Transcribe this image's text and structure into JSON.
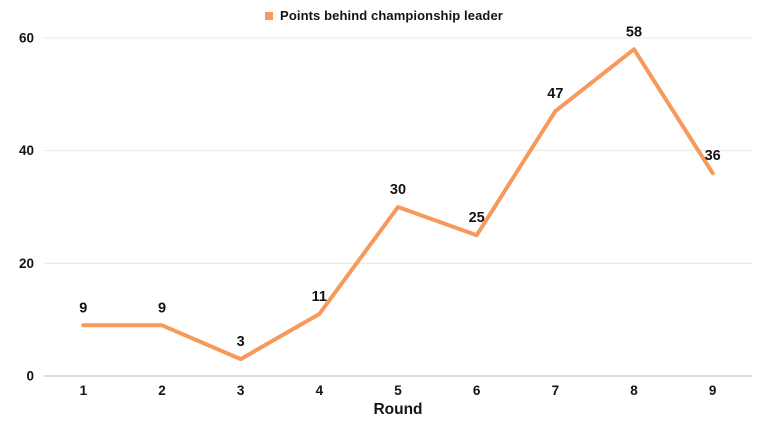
{
  "legend": {
    "label": "Points behind championship leader"
  },
  "colors": {
    "line": "#F8995C",
    "legend_marker": "#F8995C",
    "grid": "#E8E8E8",
    "axis": "#C6C6C6",
    "text": "#141414"
  },
  "chart_data": {
    "type": "line",
    "categories": [
      "1",
      "2",
      "3",
      "4",
      "5",
      "6",
      "7",
      "8",
      "9"
    ],
    "values": [
      9,
      9,
      3,
      11,
      30,
      25,
      47,
      58,
      36
    ],
    "series": [
      {
        "name": "Points behind championship leader",
        "values": [
          9,
          9,
          3,
          11,
          30,
          25,
          47,
          58,
          36
        ]
      }
    ],
    "title": "",
    "xlabel": "Round",
    "ylabel": "",
    "ylim": [
      0,
      60
    ],
    "yticks": [
      0,
      20,
      40,
      60
    ],
    "grid": "horizontal",
    "legend_position": "top-center",
    "data_labels": true
  }
}
